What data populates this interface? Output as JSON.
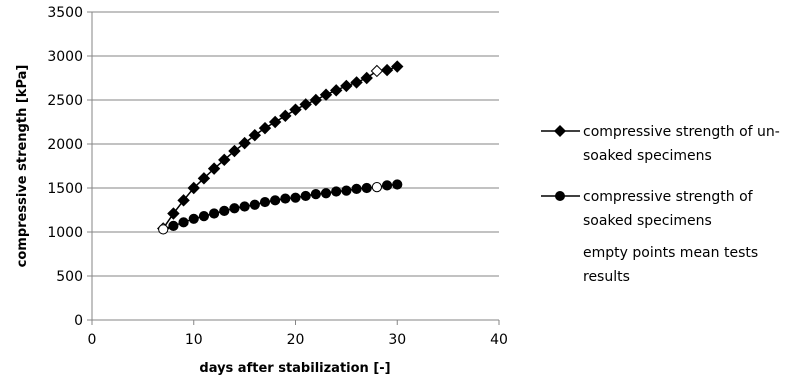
{
  "chart_data": {
    "type": "line",
    "xlabel": "days after stabilization [-]",
    "ylabel": "compressive strength [kPa]",
    "xlim": [
      0,
      40
    ],
    "ylim": [
      0,
      3500
    ],
    "xticks": [
      0,
      10,
      20,
      30,
      40
    ],
    "yticks": [
      0,
      500,
      1000,
      1500,
      2000,
      2500,
      3000,
      3500
    ],
    "grid": "horizontal",
    "legend_position": "right",
    "series": [
      {
        "name_lines": [
          "compressive strength of un-",
          "soaked specimens"
        ],
        "marker": "diamond",
        "color": "#000000",
        "x": [
          7,
          8,
          9,
          10,
          11,
          12,
          13,
          14,
          15,
          16,
          17,
          18,
          19,
          20,
          21,
          22,
          23,
          24,
          25,
          26,
          27,
          28,
          29,
          30
        ],
        "y": [
          1040,
          1210,
          1360,
          1500,
          1610,
          1720,
          1820,
          1920,
          2010,
          2100,
          2180,
          2250,
          2320,
          2390,
          2450,
          2500,
          2560,
          2610,
          2660,
          2700,
          2750,
          2830,
          2840,
          2880
        ],
        "hollow_x": [
          7,
          28
        ]
      },
      {
        "name_lines": [
          "compressive strength of",
          "soaked specimens"
        ],
        "marker": "circle",
        "color": "#000000",
        "x": [
          7,
          8,
          9,
          10,
          11,
          12,
          13,
          14,
          15,
          16,
          17,
          18,
          19,
          20,
          21,
          22,
          23,
          24,
          25,
          26,
          27,
          28,
          29,
          30
        ],
        "y": [
          1030,
          1070,
          1110,
          1150,
          1180,
          1210,
          1240,
          1270,
          1290,
          1310,
          1340,
          1360,
          1380,
          1390,
          1410,
          1430,
          1440,
          1460,
          1470,
          1490,
          1500,
          1510,
          1530,
          1540
        ],
        "hollow_x": [
          7,
          28
        ]
      }
    ],
    "note_lines": [
      "empty points mean tests",
      "results"
    ]
  }
}
